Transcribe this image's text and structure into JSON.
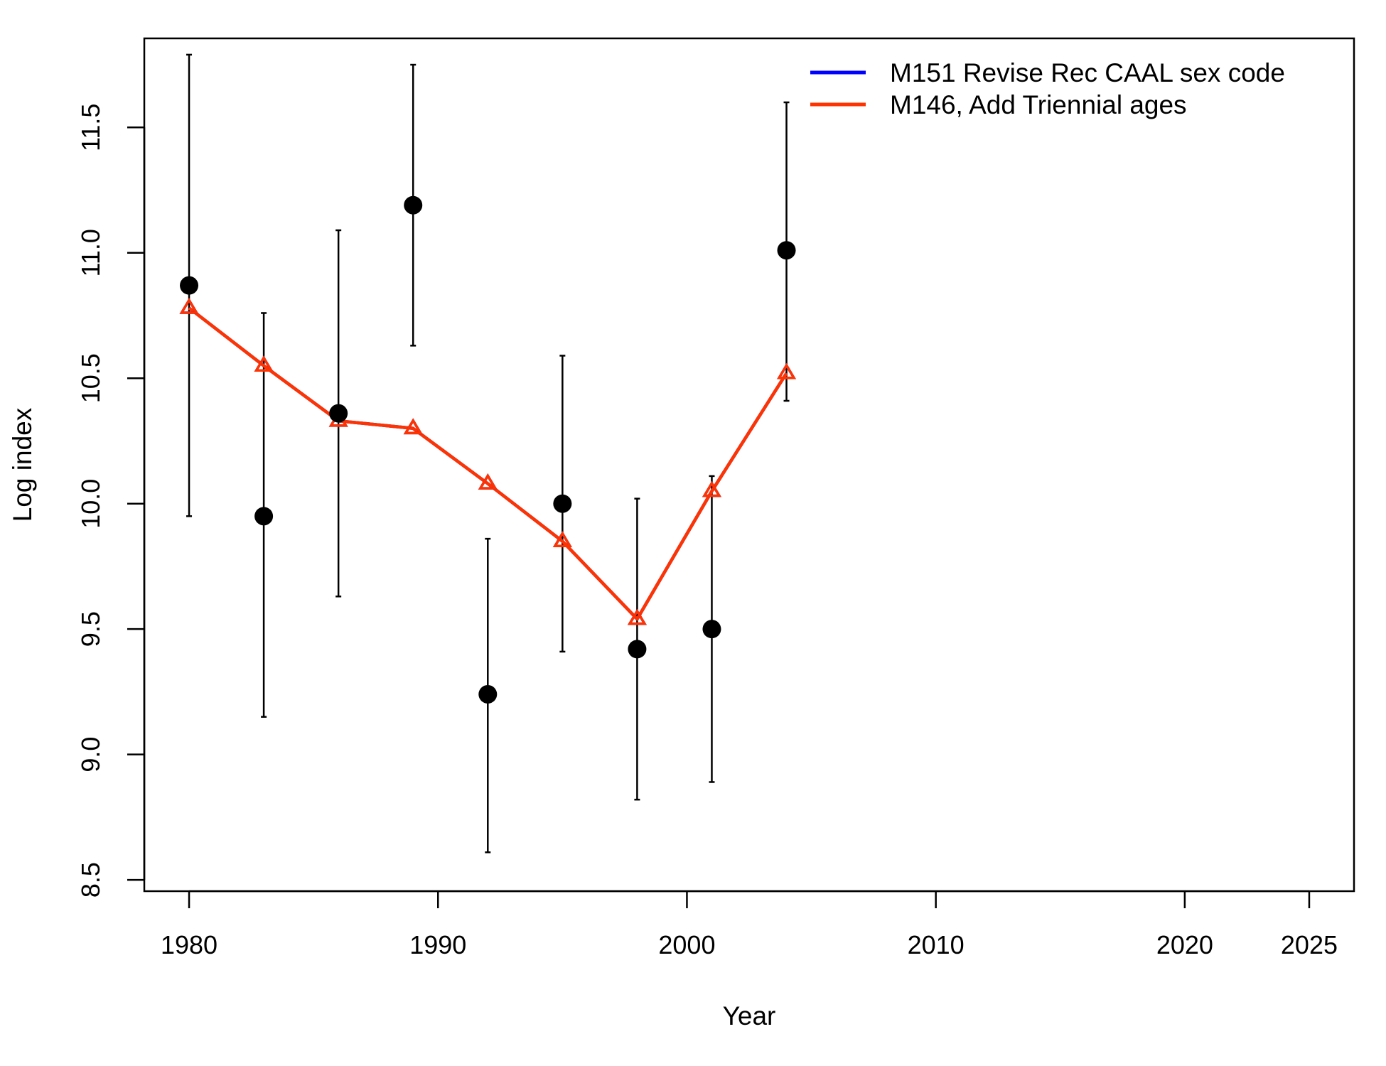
{
  "chart_data": {
    "type": "line",
    "title": "",
    "xlabel": "Year",
    "ylabel": "Log index",
    "xlim": [
      1978.2,
      2026.8
    ],
    "ylim": [
      8.455,
      11.855
    ],
    "x_ticks": [
      1980,
      1990,
      2000,
      2010,
      2020,
      2025
    ],
    "y_ticks": [
      8.5,
      9.0,
      9.5,
      10.0,
      10.5,
      11.0,
      11.5
    ],
    "y_tick_labels": [
      "8.5",
      "9.0",
      "9.5",
      "10.0",
      "10.5",
      "11.0",
      "11.5"
    ],
    "grid": false,
    "legend_position": "top-right",
    "observed": {
      "x": [
        1980,
        1983,
        1986,
        1989,
        1992,
        1995,
        1998,
        2001,
        2004
      ],
      "y": [
        10.87,
        9.95,
        10.36,
        11.19,
        9.24,
        10.0,
        9.42,
        9.5,
        11.01
      ],
      "lower": [
        9.95,
        9.15,
        9.63,
        10.63,
        8.61,
        9.41,
        8.82,
        8.89,
        10.41
      ],
      "upper": [
        11.79,
        10.76,
        11.09,
        11.75,
        9.86,
        10.59,
        10.02,
        10.11,
        11.6
      ],
      "color": "#000000"
    },
    "series": [
      {
        "name": "M151 Revise Rec CAAL sex code",
        "color": "#0000ff",
        "x": [
          1980,
          1983,
          1986,
          1989,
          1992,
          1995,
          1998,
          2001,
          2004
        ],
        "y": [
          10.78,
          10.55,
          10.33,
          10.3,
          10.08,
          9.85,
          9.54,
          10.05,
          10.52
        ]
      },
      {
        "name": "M146, Add Triennial ages",
        "color": "#ff3300",
        "x": [
          1980,
          1983,
          1986,
          1989,
          1992,
          1995,
          1998,
          2001,
          2004
        ],
        "y": [
          10.78,
          10.55,
          10.33,
          10.3,
          10.08,
          9.85,
          9.54,
          10.05,
          10.52
        ]
      }
    ]
  }
}
